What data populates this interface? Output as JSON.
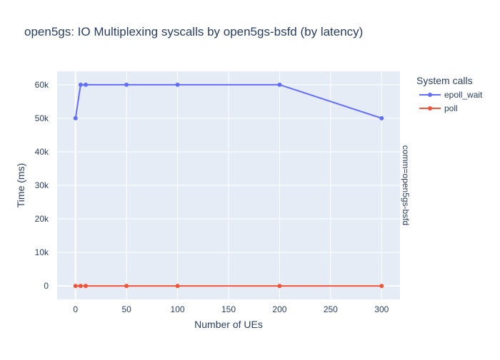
{
  "chart_data": {
    "type": "line",
    "title": "open5gs: IO Multiplexing syscalls by open5gs-bsfd (by latency)",
    "xlabel": "Number of UEs",
    "ylabel": "Time (ms)",
    "facet_label": "comm=open5gs-bsfd",
    "legend_title": "System calls",
    "legend_position": "right",
    "grid": true,
    "xlim": [
      -18,
      318
    ],
    "ylim": [
      -4000,
      64000
    ],
    "x_ticks": [
      0,
      50,
      100,
      150,
      200,
      250,
      300
    ],
    "x_tick_labels": [
      "0",
      "50",
      "100",
      "150",
      "200",
      "250",
      "300"
    ],
    "y_ticks": [
      0,
      10000,
      20000,
      30000,
      40000,
      50000,
      60000
    ],
    "y_tick_labels": [
      "0",
      "10k",
      "20k",
      "30k",
      "40k",
      "50k",
      "60k"
    ],
    "x": [
      0,
      5,
      10,
      50,
      100,
      200,
      300
    ],
    "series": [
      {
        "name": "epoll_wait",
        "color": "#636efa",
        "values": [
          50000,
          60000,
          60000,
          60000,
          60000,
          60000,
          50000
        ]
      },
      {
        "name": "poll",
        "color": "#ef553b",
        "values": [
          0,
          0,
          0,
          0,
          0,
          0,
          0
        ]
      }
    ],
    "plot_background": "#e5ecf6",
    "grid_color": "#ffffff"
  }
}
